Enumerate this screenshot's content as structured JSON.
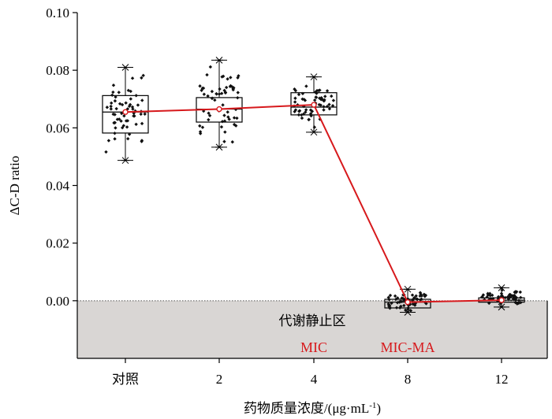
{
  "chart_data": {
    "type": "box",
    "ylabel": "ΔC-D ratio",
    "xlabel_main": "药物质量浓度/(μg·mL",
    "xlabel_sup": "-1",
    "xlabel_close": ")",
    "categories": [
      "对照",
      "2",
      "4",
      "8",
      "12"
    ],
    "ylim": [
      -0.02,
      0.1
    ],
    "yticks": [
      "0.10",
      "0.08",
      "0.06",
      "0.04",
      "0.02",
      "0.00"
    ],
    "ytick_values": [
      0.1,
      0.08,
      0.06,
      0.04,
      0.02,
      0.0
    ],
    "boxes": [
      {
        "category": "对照",
        "min": 0.0487,
        "q1": 0.0582,
        "median": 0.0655,
        "q3": 0.0712,
        "max": 0.081,
        "mean": 0.0655
      },
      {
        "category": "2",
        "min": 0.0533,
        "q1": 0.062,
        "median": 0.0665,
        "q3": 0.0705,
        "max": 0.0835,
        "mean": 0.0665
      },
      {
        "category": "4",
        "min": 0.0585,
        "q1": 0.0645,
        "median": 0.0672,
        "q3": 0.0722,
        "max": 0.0777,
        "mean": 0.068
      },
      {
        "category": "8",
        "min": -0.004,
        "q1": -0.0025,
        "median": -0.0005,
        "q3": 0.0005,
        "max": 0.004,
        "mean": -0.0005
      },
      {
        "category": "12",
        "min": -0.0022,
        "q1": -0.0005,
        "median": 0.0002,
        "q3": 0.001,
        "max": 0.0045,
        "mean": 0.0002
      }
    ],
    "mean_line_color": "#d7191c",
    "baseline": 0.0,
    "zone_label": "代谢静止区",
    "zone_color": "#d9d6d4",
    "annotations": [
      {
        "text": "MIC",
        "category": "4"
      },
      {
        "text": "MIC-MA",
        "category": "8"
      }
    ],
    "annotation_color": "#d7191c",
    "grid": false,
    "legend": "none"
  }
}
